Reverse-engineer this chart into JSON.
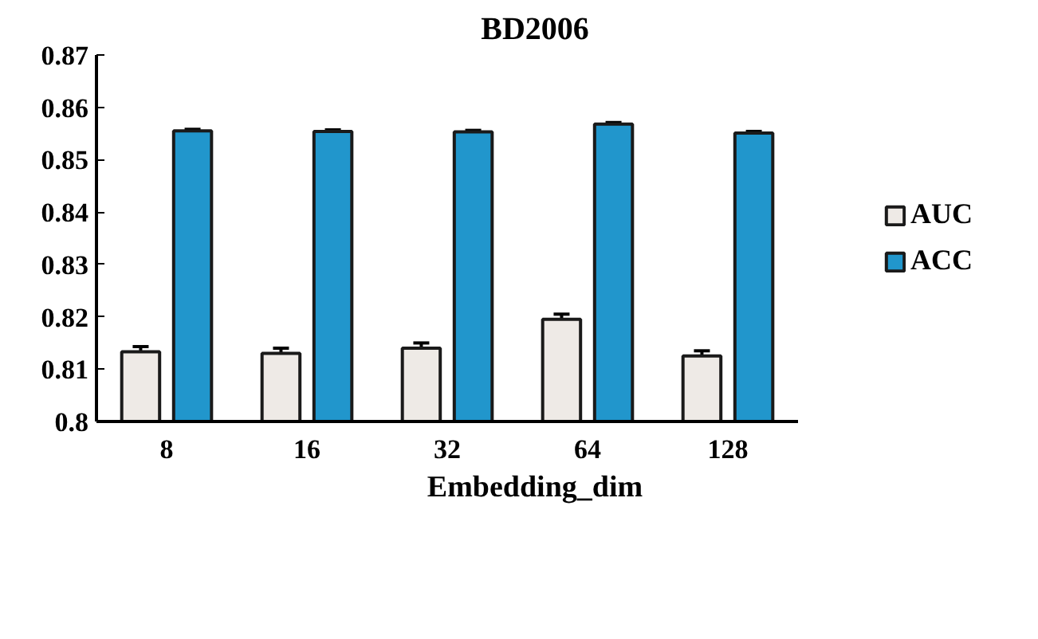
{
  "chart_data": {
    "type": "bar",
    "title": "BD2006",
    "xlabel": "Embedding_dim",
    "categories": [
      "8",
      "16",
      "32",
      "64",
      "128"
    ],
    "series": [
      {
        "name": "AUC",
        "color": "#eeeae6",
        "values": [
          0.8133,
          0.813,
          0.814,
          0.8195,
          0.8125
        ],
        "errors": [
          0.001,
          0.001,
          0.001,
          0.001,
          0.001
        ]
      },
      {
        "name": "ACC",
        "color": "#2196cc",
        "values": [
          0.8555,
          0.8554,
          0.8553,
          0.8568,
          0.8551
        ],
        "errors": [
          0.0003,
          0.0003,
          0.0003,
          0.0003,
          0.0003
        ]
      }
    ],
    "ylim": [
      0.8,
      0.87
    ],
    "yticks": [
      0.8,
      0.81,
      0.82,
      0.83,
      0.84,
      0.85,
      0.86,
      0.87
    ],
    "grid": false,
    "legend": "right"
  }
}
